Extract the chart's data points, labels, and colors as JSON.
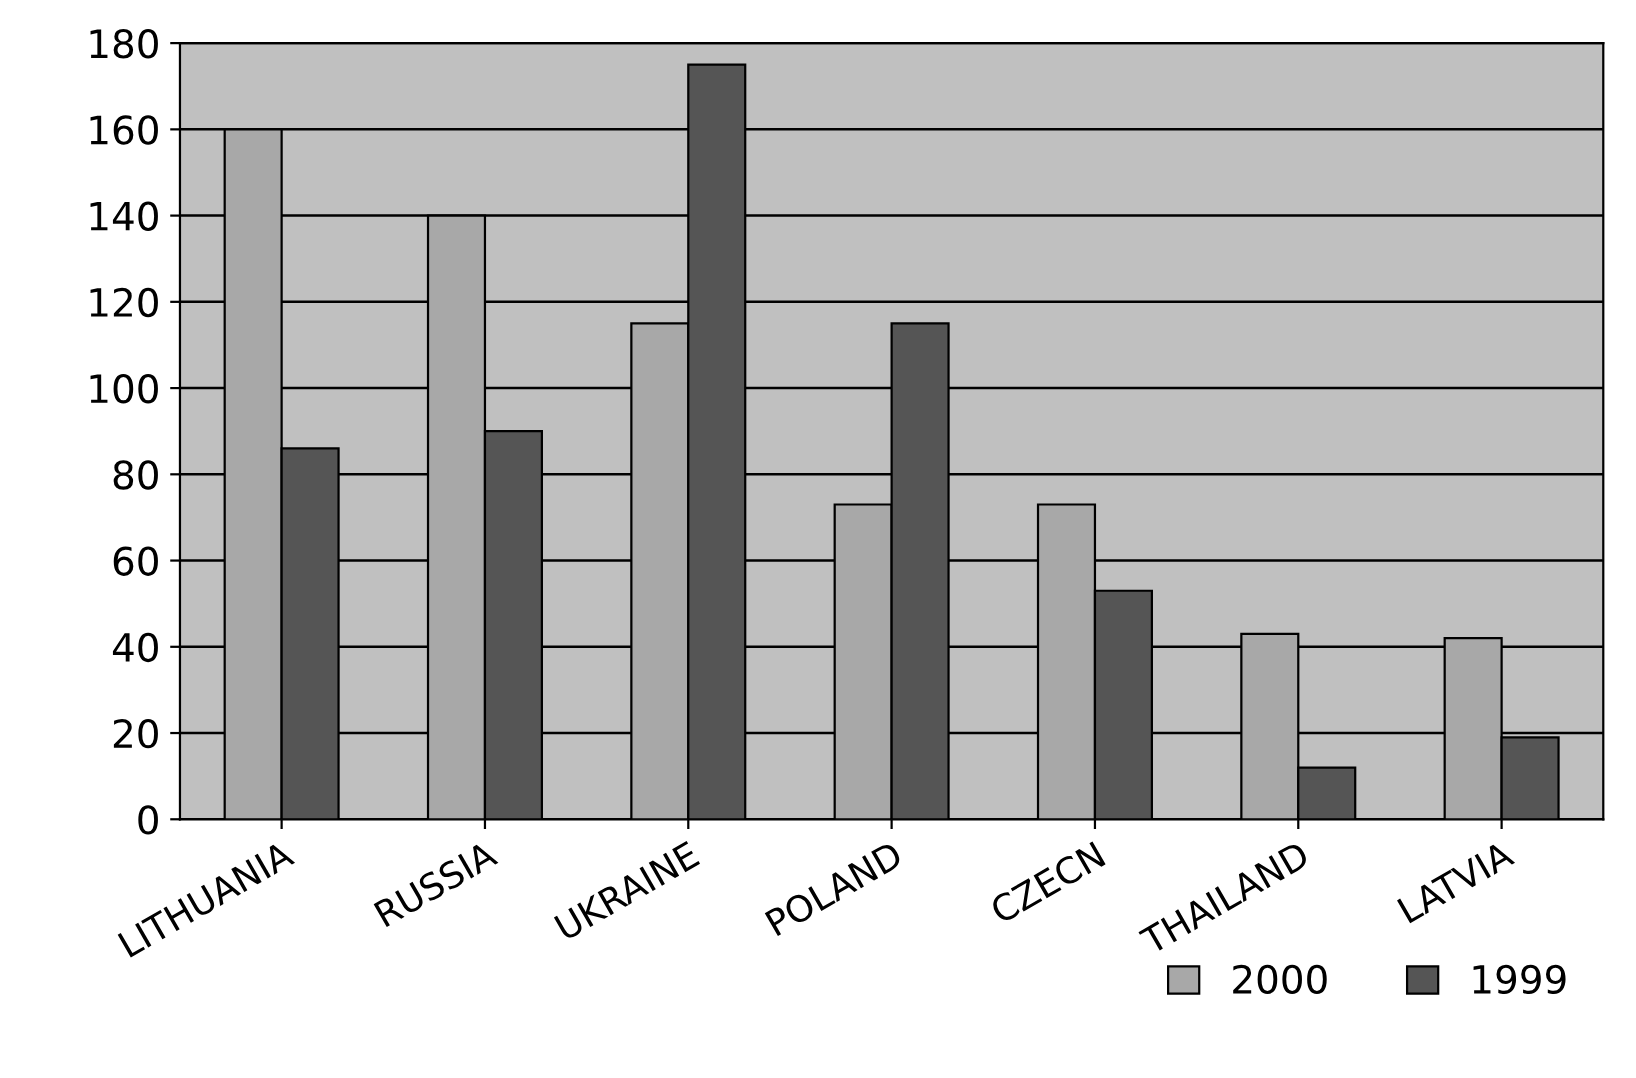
{
  "chart_data": {
    "type": "bar",
    "categories": [
      "LITHUANIA",
      "RUSSIA",
      "UKRAINE",
      "POLAND",
      "CZECN",
      "THAILAND",
      "LATVIA"
    ],
    "series": [
      {
        "name": "2000",
        "color": "#a8a8a8",
        "values": [
          160,
          140,
          115,
          73,
          73,
          43,
          42
        ]
      },
      {
        "name": "1999",
        "color": "#555555",
        "values": [
          86,
          90,
          175,
          115,
          53,
          12,
          19
        ]
      }
    ],
    "ylim": [
      0,
      180
    ],
    "yticks": [
      0,
      20,
      40,
      60,
      80,
      100,
      120,
      140,
      160,
      180
    ],
    "grid": "y",
    "legend": "bottom right"
  }
}
